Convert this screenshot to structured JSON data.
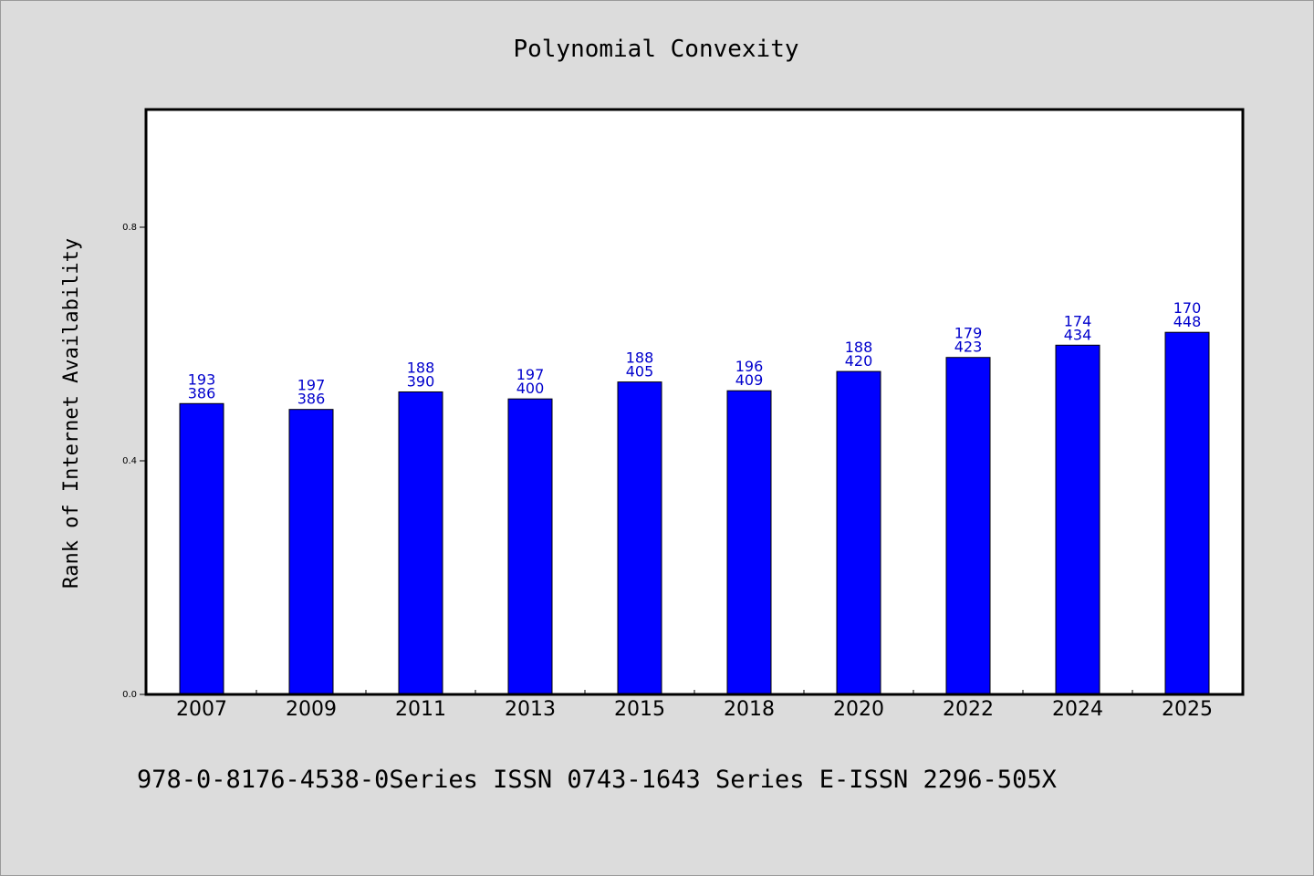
{
  "chart_data": {
    "type": "bar",
    "title": "Polynomial Convexity",
    "xlabel": "",
    "ylabel": "Rank of Internet Availability",
    "ylim": [
      0,
      1.0
    ],
    "yticks": [
      "0.0",
      "0.4",
      "0.8"
    ],
    "ytick_values": [
      0.0,
      0.4,
      0.8
    ],
    "categories": [
      "2007",
      "2009",
      "2011",
      "2013",
      "2015",
      "2018",
      "2020",
      "2022",
      "2024",
      "2025"
    ],
    "values": [
      0.498,
      0.488,
      0.518,
      0.506,
      0.535,
      0.52,
      0.553,
      0.577,
      0.598,
      0.62
    ],
    "bar_labels_top": [
      "193",
      "197",
      "188",
      "197",
      "188",
      "196",
      "188",
      "179",
      "174",
      "170"
    ],
    "bar_labels_bottom": [
      "386",
      "386",
      "390",
      "400",
      "405",
      "409",
      "420",
      "423",
      "434",
      "448"
    ],
    "bar_color": "#0000ff",
    "label_color": "#0000cc",
    "plot_background": "#ffffff",
    "figure_background": "#dcdcdc",
    "grid": false,
    "legend": "none"
  },
  "footer": {
    "text": "978-0-8176-4538-0Series ISSN 0743-1643 Series E-ISSN 2296-505X"
  }
}
